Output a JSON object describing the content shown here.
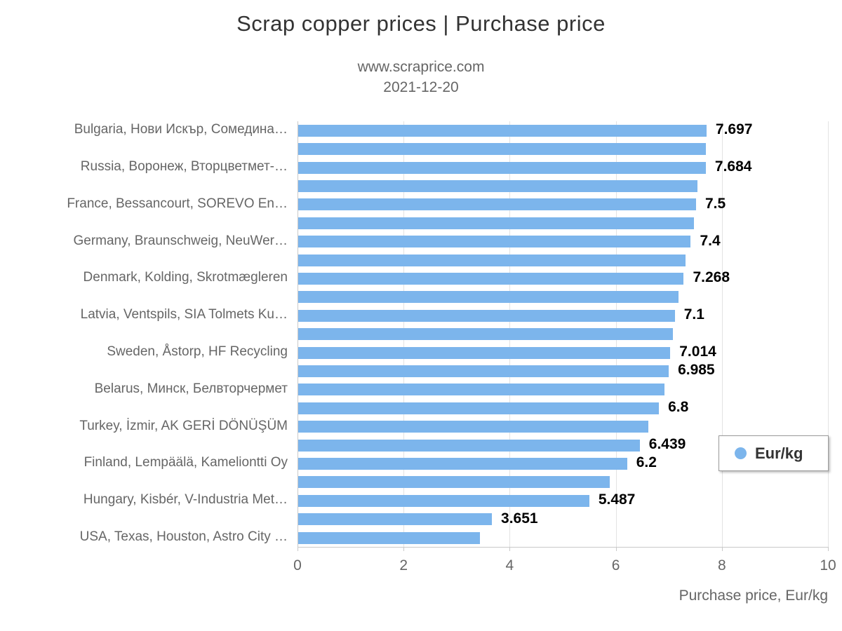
{
  "chart_data": {
    "type": "bar",
    "orientation": "horizontal",
    "title": "Scrap copper prices | Purchase price",
    "subtitle": "www.scraprice.com",
    "date": "2021-12-20",
    "xlabel": "Purchase price, Eur/kg",
    "xlim": [
      0,
      10
    ],
    "x_ticks": [
      0,
      2,
      4,
      6,
      8,
      10
    ],
    "grid": "vertical",
    "legend": "Eur/kg",
    "legend_position": "right-middle",
    "colors": {
      "bar": "#7cb5ec",
      "grid": "#e3e3e3",
      "axis_line": "#c9c9c9",
      "category_text": "#666666",
      "value_text": "#000000",
      "title_text": "#333333",
      "subtitle_text": "#666666"
    },
    "bars": [
      {
        "category": "Bulgaria, Нови Искър, Сомедина…",
        "value": 7.697,
        "value_label": "7.697"
      },
      {
        "category": "",
        "value": 7.69,
        "value_label": ""
      },
      {
        "category": "Russia, Воронеж, Вторцветмет-…",
        "value": 7.684,
        "value_label": "7.684"
      },
      {
        "category": "",
        "value": 7.52,
        "value_label": ""
      },
      {
        "category": "France, Bessancourt, SOREVO En…",
        "value": 7.5,
        "value_label": "7.5"
      },
      {
        "category": "",
        "value": 7.46,
        "value_label": ""
      },
      {
        "category": "Germany, Braunschweig, NeuWer…",
        "value": 7.4,
        "value_label": "7.4"
      },
      {
        "category": "",
        "value": 7.3,
        "value_label": ""
      },
      {
        "category": "Denmark, Kolding, Skrotmægleren",
        "value": 7.268,
        "value_label": "7.268"
      },
      {
        "category": "",
        "value": 7.17,
        "value_label": ""
      },
      {
        "category": "Latvia, Ventspils, SIA Tolmets Ku…",
        "value": 7.1,
        "value_label": "7.1"
      },
      {
        "category": "",
        "value": 7.06,
        "value_label": ""
      },
      {
        "category": "Sweden, Åstorp, HF Recycling",
        "value": 7.014,
        "value_label": "7.014"
      },
      {
        "category": "",
        "value": 6.985,
        "value_label": "6.985"
      },
      {
        "category": "Belarus, Минск, Белвторчермет",
        "value": 6.91,
        "value_label": ""
      },
      {
        "category": "",
        "value": 6.8,
        "value_label": "6.8"
      },
      {
        "category": "Turkey, İzmir, AK GERİ DÖNÜŞÜM",
        "value": 6.6,
        "value_label": ""
      },
      {
        "category": "",
        "value": 6.439,
        "value_label": "6.439"
      },
      {
        "category": "Finland, Lempäälä, Kameliontti Oy",
        "value": 6.2,
        "value_label": "6.2"
      },
      {
        "category": "",
        "value": 5.87,
        "value_label": ""
      },
      {
        "category": "Hungary, Kisbér, V-Industria Met…",
        "value": 5.487,
        "value_label": "5.487"
      },
      {
        "category": "",
        "value": 3.651,
        "value_label": "3.651"
      },
      {
        "category": "USA, Texas, Houston, Astro City …",
        "value": 3.42,
        "value_label": ""
      }
    ]
  }
}
